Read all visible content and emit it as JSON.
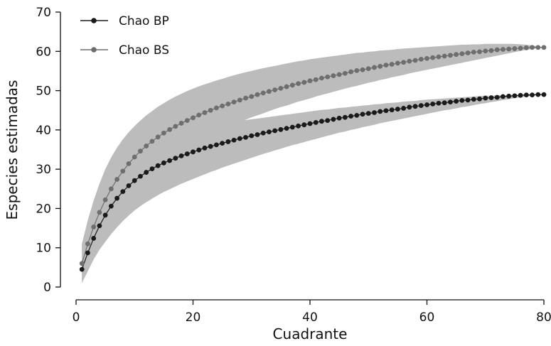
{
  "chart_data": {
    "type": "line",
    "xlabel": "Cuadrante",
    "ylabel": "Especies estimadas",
    "xlim": [
      0,
      80
    ],
    "ylim": [
      0,
      70
    ],
    "xticks": [
      "0",
      "20",
      "40",
      "60",
      "80"
    ],
    "yticks": [
      "0",
      "10",
      "20",
      "30",
      "40",
      "50",
      "60",
      "70"
    ],
    "grid": false,
    "legend_position": "top-left",
    "band_color": "#bcbcbc",
    "series": [
      {
        "name": "Chao BP",
        "color": "#1a1a1a",
        "x": [
          1,
          2,
          3,
          4,
          5,
          6,
          7,
          8,
          9,
          10,
          11,
          12,
          13,
          14,
          15,
          16,
          17,
          18,
          19,
          20,
          21,
          22,
          23,
          24,
          25,
          26,
          27,
          28,
          29,
          30,
          31,
          32,
          33,
          34,
          35,
          36,
          37,
          38,
          39,
          40,
          41,
          42,
          43,
          44,
          45,
          46,
          47,
          48,
          49,
          50,
          51,
          52,
          53,
          54,
          55,
          56,
          57,
          58,
          59,
          60,
          61,
          62,
          63,
          64,
          65,
          66,
          67,
          68,
          69,
          70,
          71,
          72,
          73,
          74,
          75,
          76,
          77,
          78,
          79,
          80
        ],
        "values": [
          4.5,
          8.7,
          12.4,
          15.6,
          18.3,
          20.6,
          22.6,
          24.3,
          25.8,
          27.1,
          28.2,
          29.2,
          30.1,
          30.9,
          31.6,
          32.2,
          32.8,
          33.4,
          33.9,
          34.4,
          34.9,
          35.4,
          35.8,
          36.2,
          36.6,
          37.0,
          37.4,
          37.8,
          38.1,
          38.5,
          38.8,
          39.2,
          39.5,
          39.8,
          40.1,
          40.4,
          40.7,
          41.0,
          41.3,
          41.6,
          41.9,
          42.2,
          42.4,
          42.7,
          43.0,
          43.2,
          43.5,
          43.7,
          44.0,
          44.2,
          44.4,
          44.7,
          44.9,
          45.1,
          45.3,
          45.5,
          45.8,
          46.0,
          46.2,
          46.4,
          46.6,
          46.8,
          46.9,
          47.1,
          47.3,
          47.5,
          47.6,
          47.8,
          47.9,
          48.1,
          48.2,
          48.3,
          48.5,
          48.6,
          48.7,
          48.8,
          48.9,
          48.9,
          49.0,
          49.0
        ],
        "upper": [
          11.0,
          15.5,
          19.5,
          22.5,
          25.0,
          27.0,
          28.8,
          30.3,
          31.7,
          32.9,
          33.9,
          34.9,
          35.7,
          36.5,
          37.2,
          37.8,
          38.4,
          38.9,
          39.4,
          39.8,
          40.2,
          40.6,
          40.9,
          41.2,
          41.5,
          41.8,
          42.1,
          42.3,
          42.5,
          42.7,
          42.9,
          43.1,
          43.3,
          43.5,
          43.7,
          43.9,
          44.1,
          44.3,
          44.5,
          44.7,
          44.9,
          45.1,
          45.2,
          45.4,
          45.6,
          45.7,
          45.9,
          46.0,
          46.2,
          46.3,
          46.5,
          46.6,
          46.8,
          46.9,
          47.0,
          47.2,
          47.3,
          47.4,
          47.6,
          47.7,
          47.8,
          47.9,
          48.0,
          48.1,
          48.2,
          48.3,
          48.4,
          48.5,
          48.6,
          48.7,
          48.7,
          48.8,
          48.8,
          48.9,
          48.9,
          49.0,
          49.0,
          49.0,
          49.0,
          49.0
        ],
        "lower": [
          1.0,
          4.0,
          7.0,
          9.5,
          11.5,
          13.5,
          15.2,
          16.8,
          18.2,
          19.5,
          20.6,
          21.6,
          22.5,
          23.4,
          24.2,
          24.9,
          25.6,
          26.3,
          26.9,
          27.5,
          28.1,
          28.7,
          29.3,
          29.8,
          30.4,
          30.9,
          31.4,
          31.9,
          32.4,
          32.9,
          33.4,
          33.9,
          34.3,
          34.8,
          35.2,
          35.7,
          36.1,
          36.5,
          36.9,
          37.3,
          37.7,
          38.1,
          38.5,
          38.9,
          39.3,
          39.6,
          40.0,
          40.3,
          40.7,
          41.0,
          41.3,
          41.7,
          42.0,
          42.3,
          42.6,
          42.9,
          43.2,
          43.5,
          43.8,
          44.1,
          44.4,
          44.7,
          45.0,
          45.2,
          45.5,
          45.8,
          46.0,
          46.3,
          46.6,
          46.8,
          47.1,
          47.3,
          47.6,
          47.8,
          48.1,
          48.3,
          48.5,
          48.7,
          48.9,
          49.0
        ]
      },
      {
        "name": "Chao BS",
        "color": "#6e6e6e",
        "x": [
          1,
          2,
          3,
          4,
          5,
          6,
          7,
          8,
          9,
          10,
          11,
          12,
          13,
          14,
          15,
          16,
          17,
          18,
          19,
          20,
          21,
          22,
          23,
          24,
          25,
          26,
          27,
          28,
          29,
          30,
          31,
          32,
          33,
          34,
          35,
          36,
          37,
          38,
          39,
          40,
          41,
          42,
          43,
          44,
          45,
          46,
          47,
          48,
          49,
          50,
          51,
          52,
          53,
          54,
          55,
          56,
          57,
          58,
          59,
          60,
          61,
          62,
          63,
          64,
          65,
          66,
          67,
          68,
          69,
          70,
          71,
          72,
          73,
          74,
          75,
          76,
          77,
          78,
          79,
          80
        ],
        "values": [
          6.0,
          11.0,
          15.3,
          19.0,
          22.2,
          25.0,
          27.4,
          29.5,
          31.4,
          33.1,
          34.6,
          35.9,
          37.1,
          38.2,
          39.2,
          40.1,
          40.9,
          41.7,
          42.4,
          43.1,
          43.8,
          44.4,
          45.0,
          45.6,
          46.1,
          46.6,
          47.1,
          47.6,
          48.1,
          48.5,
          49.0,
          49.4,
          49.8,
          50.2,
          50.6,
          51.0,
          51.4,
          51.8,
          52.1,
          52.5,
          52.8,
          53.2,
          53.5,
          53.8,
          54.1,
          54.4,
          54.8,
          55.1,
          55.3,
          55.6,
          55.9,
          56.2,
          56.5,
          56.7,
          57.0,
          57.2,
          57.5,
          57.7,
          58.0,
          58.2,
          58.4,
          58.6,
          58.8,
          59.0,
          59.2,
          59.4,
          59.6,
          59.8,
          59.9,
          60.1,
          60.2,
          60.4,
          60.5,
          60.6,
          60.7,
          60.8,
          60.9,
          61.0,
          61.0,
          61.0
        ],
        "upper": [
          11.0,
          17.0,
          22.0,
          26.3,
          30.0,
          33.0,
          35.5,
          37.6,
          39.4,
          41.0,
          42.4,
          43.7,
          44.8,
          45.9,
          46.8,
          47.7,
          48.5,
          49.2,
          49.9,
          50.5,
          51.1,
          51.6,
          52.1,
          52.6,
          53.0,
          53.5,
          53.9,
          54.3,
          54.7,
          55.0,
          55.4,
          55.7,
          56.0,
          56.3,
          56.6,
          56.9,
          57.2,
          57.5,
          57.7,
          58.0,
          58.2,
          58.4,
          58.6,
          58.8,
          59.0,
          59.2,
          59.4,
          59.6,
          59.7,
          59.9,
          60.0,
          60.2,
          60.3,
          60.4,
          60.6,
          60.7,
          60.8,
          60.9,
          61.0,
          61.1,
          61.2,
          61.3,
          61.4,
          61.5,
          61.6,
          61.7,
          61.7,
          61.8,
          61.8,
          61.9,
          61.9,
          61.9,
          61.9,
          61.9,
          61.9,
          61.8,
          61.7,
          61.5,
          61.3,
          61.0
        ],
        "lower": [
          2.0,
          5.5,
          9.0,
          12.3,
          15.2,
          17.8,
          20.0,
          22.0,
          23.8,
          25.5,
          27.0,
          28.4,
          29.7,
          30.9,
          32.0,
          33.0,
          34.0,
          34.9,
          35.8,
          36.6,
          37.4,
          38.1,
          38.8,
          39.5,
          40.2,
          40.8,
          41.4,
          42.0,
          42.6,
          43.2,
          43.7,
          44.2,
          44.8,
          45.3,
          45.8,
          46.2,
          46.7,
          47.2,
          47.6,
          48.0,
          48.5,
          48.9,
          49.3,
          49.7,
          50.1,
          50.5,
          50.9,
          51.2,
          51.6,
          52.0,
          52.3,
          52.7,
          53.0,
          53.4,
          53.7,
          54.0,
          54.4,
          54.7,
          55.0,
          55.3,
          55.6,
          55.9,
          56.2,
          56.5,
          56.8,
          57.1,
          57.4,
          57.7,
          58.0,
          58.3,
          58.6,
          58.9,
          59.2,
          59.5,
          59.8,
          60.1,
          60.4,
          60.6,
          60.8,
          61.0
        ]
      }
    ]
  }
}
